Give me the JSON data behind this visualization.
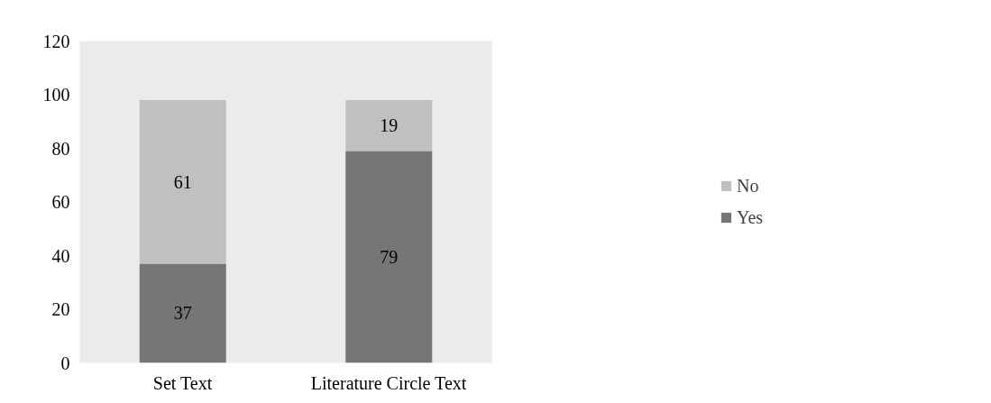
{
  "chart_data": {
    "type": "bar",
    "stacked": true,
    "categories": [
      "Set Text",
      "Literature Circle Text"
    ],
    "series": [
      {
        "name": "Yes",
        "color": "#767676",
        "values": [
          37,
          79
        ]
      },
      {
        "name": "No",
        "color": "#c0c0c0",
        "values": [
          61,
          19
        ]
      }
    ],
    "ylim": [
      0,
      120
    ],
    "yticks": [
      0,
      20,
      40,
      60,
      80,
      100,
      120
    ],
    "grid": false,
    "legend": "right",
    "data_labels": true
  }
}
